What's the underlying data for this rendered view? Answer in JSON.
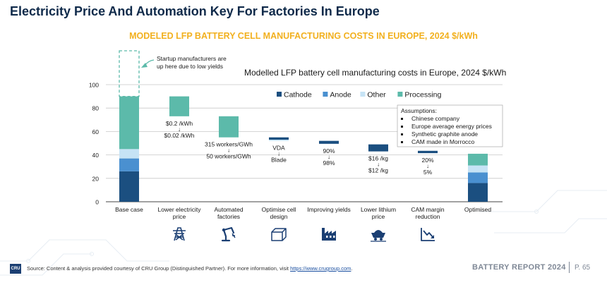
{
  "page": {
    "title": "Electricity Price And Automation Key For Factories In Europe",
    "chart_heading": "MODELED LFP BATTERY CELL MANUFACTURING COSTS IN EUROPE, 2024 $/kWh",
    "footer": {
      "logo_text": "CRU",
      "source_prefix": "Source: Content & analysis provided courtesy of CRU Group (Distinguished Partner). For more information, visit ",
      "source_link": "https://www.crugroup.com",
      "source_suffix": ".",
      "report": "BATTERY REPORT 2024",
      "page_number": "P. 65"
    }
  },
  "chart_data": {
    "type": "bar",
    "subtype": "waterfall",
    "title": "Modelled LFP battery cell manufacturing costs in Europe, 2024 $/kWh",
    "ylim": [
      0,
      100
    ],
    "yticks": [
      0,
      20,
      40,
      60,
      80,
      100
    ],
    "grid": true,
    "legend_position": "top",
    "colors": {
      "Cathode": "#1b4f80",
      "Anode": "#4a90d0",
      "Other": "#c6e3f5",
      "Processing": "#5cbaaa"
    },
    "legend": [
      "Cathode",
      "Anode",
      "Other",
      "Processing"
    ],
    "categories": [
      "Base case",
      "Lower electricity price",
      "Automated factories",
      "Optimise cell design",
      "Improving yields",
      "Lower lithium price",
      "CAM margin reduction",
      "Optimised"
    ],
    "category_label_lines": [
      [
        "Base case"
      ],
      [
        "Lower electricity",
        "price"
      ],
      [
        "Automated",
        "factories"
      ],
      [
        "Optimise cell",
        "design"
      ],
      [
        "Improving yields"
      ],
      [
        "Lower lithium",
        "price"
      ],
      [
        "CAM margin",
        "reduction"
      ],
      [
        "Optimised"
      ]
    ],
    "category_icons": [
      "",
      "power-pylon-icon",
      "robot-arm-icon",
      "battery-cell-icon",
      "factory-icon",
      "mining-cart-icon",
      "declining-chart-icon",
      ""
    ],
    "stacked_totals": [
      {
        "category": "Base case",
        "segments": [
          {
            "series": "Cathode",
            "from": 0,
            "to": 26
          },
          {
            "series": "Anode",
            "from": 26,
            "to": 37
          },
          {
            "series": "Other",
            "from": 37,
            "to": 45
          },
          {
            "series": "Processing",
            "from": 45,
            "to": 90
          }
        ]
      },
      {
        "category": "Optimised",
        "segments": [
          {
            "series": "Cathode",
            "from": 0,
            "to": 16
          },
          {
            "series": "Anode",
            "from": 16,
            "to": 25
          },
          {
            "series": "Other",
            "from": 25,
            "to": 31
          },
          {
            "series": "Processing",
            "from": 31,
            "to": 41
          }
        ]
      }
    ],
    "steps": [
      {
        "category": "Lower electricity price",
        "segments": [
          {
            "series": "Processing",
            "from": 73,
            "to": 90
          }
        ],
        "change_from": "$0.2 /kWh",
        "change_to": "$0.02 /kWh"
      },
      {
        "category": "Automated factories",
        "segments": [
          {
            "series": "Processing",
            "from": 55,
            "to": 73
          }
        ],
        "change_from": "315 workers/GWh",
        "change_to": "50 workers/GWh"
      },
      {
        "category": "Optimise cell design",
        "segments": [
          {
            "series": "Cathode",
            "from": 53,
            "to": 55
          },
          {
            "series": "Other",
            "from": 52,
            "to": 53
          }
        ],
        "change_from": "VDA",
        "change_to": "Blade"
      },
      {
        "category": "Improving yields",
        "segments": [
          {
            "series": "Cathode",
            "from": 49.5,
            "to": 52
          }
        ],
        "change_from": "90%",
        "change_to": "98%"
      },
      {
        "category": "Lower lithium price",
        "segments": [
          {
            "series": "Cathode",
            "from": 43,
            "to": 49
          }
        ],
        "change_from": "$16 /kg",
        "change_to": "$12 /kg"
      },
      {
        "category": "CAM margin reduction",
        "segments": [
          {
            "series": "Cathode",
            "from": 41.5,
            "to": 43.5
          }
        ],
        "change_from": "20%",
        "change_to": "5%"
      }
    ],
    "startup_range": {
      "category": "Base case",
      "from": 90,
      "to": 130
    },
    "annotations": {
      "startup": [
        "Startup manufacturers are",
        "up here due to low yields"
      ],
      "assumptions_title": "Assumptions:",
      "assumptions": [
        "Chinese company",
        "Europe average energy prices",
        "Synthetic graphite anode",
        "CAM made in Morrocco"
      ]
    }
  }
}
